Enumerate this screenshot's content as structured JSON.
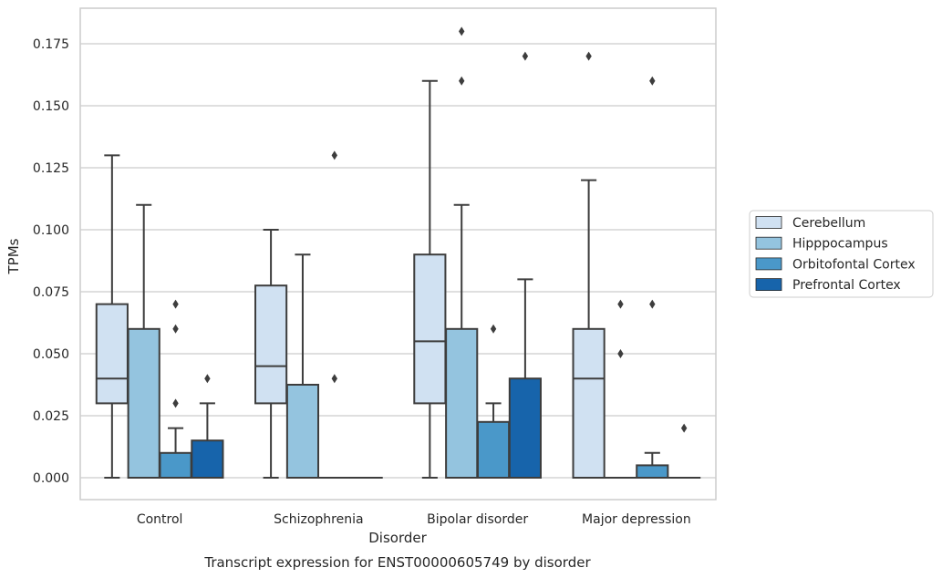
{
  "chart_data": {
    "type": "box",
    "title": "",
    "caption": "Transcript expression for ENST00000605749 by disorder",
    "xlabel": "Disorder",
    "ylabel": "TPMs",
    "ylim": [
      -0.009,
      0.1885
    ],
    "yticks": [
      "0.000",
      "0.025",
      "0.050",
      "0.075",
      "0.100",
      "0.125",
      "0.150",
      "0.175"
    ],
    "ytick_values": [
      0,
      0.025,
      0.05,
      0.075,
      0.1,
      0.125,
      0.15,
      0.175
    ],
    "grid": true,
    "legend_position": "right",
    "categories": [
      "Control",
      "Schizophrenia",
      "Bipolar disorder",
      "Major depression"
    ],
    "series": [
      {
        "name": "Cerebellum",
        "color": "#d0e1f2",
        "boxes": [
          {
            "min": 0,
            "q1": 0.03,
            "median": 0.04,
            "q3": 0.07,
            "max": 0.13,
            "outliers": []
          },
          {
            "min": 0,
            "q1": 0.03,
            "median": 0.045,
            "q3": 0.0775,
            "max": 0.1,
            "outliers": []
          },
          {
            "min": 0,
            "q1": 0.03,
            "median": 0.055,
            "q3": 0.09,
            "max": 0.16,
            "outliers": []
          },
          {
            "min": 0,
            "q1": 0,
            "median": 0.04,
            "q3": 0.06,
            "max": 0.12,
            "outliers": [
              0.17
            ]
          }
        ]
      },
      {
        "name": "Hipppocampus",
        "color": "#94c4df",
        "boxes": [
          {
            "min": 0,
            "q1": 0,
            "median": 0,
            "q3": 0.06,
            "max": 0.11,
            "outliers": []
          },
          {
            "min": 0,
            "q1": 0,
            "median": 0,
            "q3": 0.0375,
            "max": 0.09,
            "outliers": []
          },
          {
            "min": 0,
            "q1": 0,
            "median": 0,
            "q3": 0.06,
            "max": 0.11,
            "outliers": [
              0.16,
              0.18
            ]
          },
          {
            "min": 0,
            "q1": 0,
            "median": 0,
            "q3": 0,
            "max": 0,
            "outliers": [
              0.05,
              0.07
            ]
          }
        ]
      },
      {
        "name": "Orbitofontal Cortex",
        "color": "#4a98c9",
        "boxes": [
          {
            "min": 0,
            "q1": 0,
            "median": 0,
            "q3": 0.01,
            "max": 0.02,
            "outliers": [
              0.03,
              0.06,
              0.07
            ]
          },
          {
            "min": 0,
            "q1": 0,
            "median": 0,
            "q3": 0,
            "max": 0,
            "outliers": [
              0.04,
              0.13
            ]
          },
          {
            "min": 0,
            "q1": 0,
            "median": 0,
            "q3": 0.0225,
            "max": 0.03,
            "outliers": [
              0.06
            ]
          },
          {
            "min": 0,
            "q1": 0,
            "median": 0,
            "q3": 0.005,
            "max": 0.01,
            "outliers": [
              0.07,
              0.16
            ]
          }
        ]
      },
      {
        "name": "Prefrontal Cortex",
        "color": "#1764ab",
        "boxes": [
          {
            "min": 0,
            "q1": 0,
            "median": 0,
            "q3": 0.015,
            "max": 0.03,
            "outliers": [
              0.04
            ]
          },
          {
            "min": 0,
            "q1": 0,
            "median": 0,
            "q3": 0,
            "max": 0,
            "outliers": []
          },
          {
            "min": 0,
            "q1": 0,
            "median": 0,
            "q3": 0.04,
            "max": 0.08,
            "outliers": [
              0.17
            ]
          },
          {
            "min": 0,
            "q1": 0,
            "median": 0,
            "q3": 0,
            "max": 0,
            "outliers": [
              0.02
            ]
          }
        ]
      }
    ]
  }
}
